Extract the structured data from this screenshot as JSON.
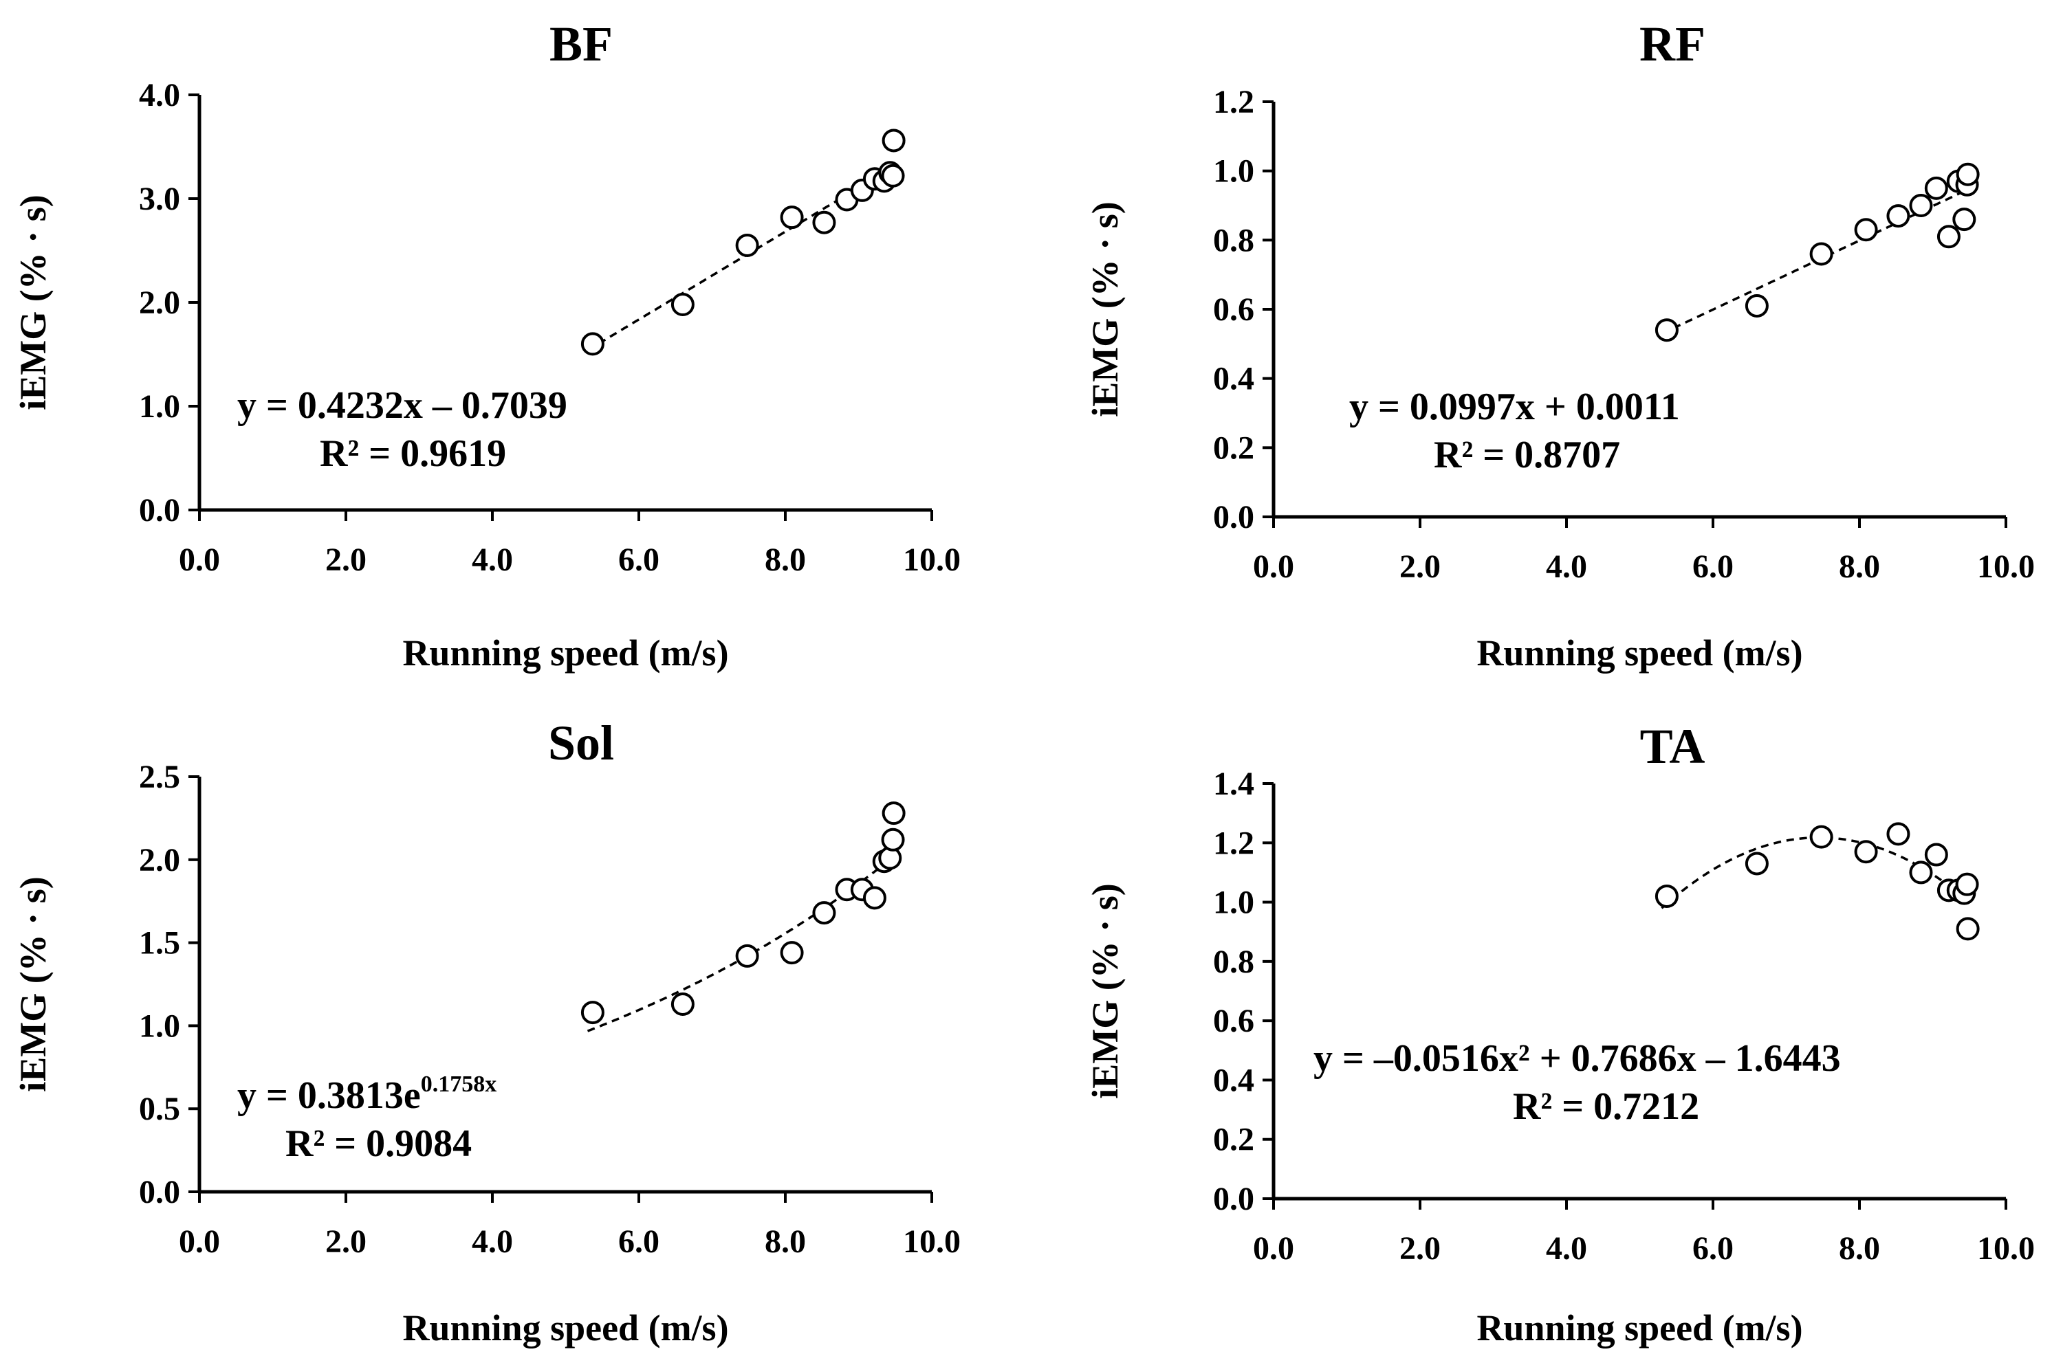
{
  "chart_data": [
    {
      "type": "scatter",
      "title": "BF",
      "xlabel": "Running speed (m/s)",
      "ylabel": "iEMG (% · s)",
      "xlim": [
        0,
        10
      ],
      "ylim": [
        0,
        4
      ],
      "xticks": [
        "0.0",
        "2.0",
        "4.0",
        "6.0",
        "8.0",
        "10.0"
      ],
      "yticks": [
        "0.0",
        "1.0",
        "2.0",
        "3.0",
        "4.0"
      ],
      "points": [
        [
          5.37,
          1.6
        ],
        [
          6.6,
          1.98
        ],
        [
          7.48,
          2.55
        ],
        [
          8.09,
          2.82
        ],
        [
          8.53,
          2.77
        ],
        [
          8.84,
          2.99
        ],
        [
          9.05,
          3.08
        ],
        [
          9.22,
          3.19
        ],
        [
          9.35,
          3.17
        ],
        [
          9.43,
          3.25
        ],
        [
          9.47,
          3.22
        ],
        [
          9.48,
          3.56
        ]
      ],
      "trend": {
        "kind": "linear",
        "a": 0.4232,
        "b": -0.7039,
        "x_range": [
          5.3,
          9.5
        ]
      },
      "equation": "y = 0.4232x – 0.7039",
      "r2_label": "R² = 0.9619"
    },
    {
      "type": "scatter",
      "title": "RF",
      "xlabel": "Running speed (m/s)",
      "ylabel": "iEMG (% · s)",
      "xlim": [
        0,
        10
      ],
      "ylim": [
        0,
        1.2
      ],
      "xticks": [
        "0.0",
        "2.0",
        "4.0",
        "6.0",
        "8.0",
        "10.0"
      ],
      "yticks": [
        "0.0",
        "0.2",
        "0.4",
        "0.6",
        "0.8",
        "1.0",
        "1.2"
      ],
      "points": [
        [
          5.37,
          0.54
        ],
        [
          6.6,
          0.61
        ],
        [
          7.48,
          0.76
        ],
        [
          8.09,
          0.83
        ],
        [
          8.53,
          0.87
        ],
        [
          8.84,
          0.9
        ],
        [
          9.05,
          0.95
        ],
        [
          9.22,
          0.81
        ],
        [
          9.35,
          0.97
        ],
        [
          9.43,
          0.86
        ],
        [
          9.47,
          0.96
        ],
        [
          9.48,
          0.99
        ]
      ],
      "trend": {
        "kind": "linear",
        "a": 0.0997,
        "b": 0.0011,
        "x_range": [
          5.3,
          9.5
        ]
      },
      "equation": "y = 0.0997x + 0.0011",
      "r2_label": "R² = 0.8707"
    },
    {
      "type": "scatter",
      "title": "Sol",
      "xlabel": "Running speed (m/s)",
      "ylabel": "iEMG (% · s)",
      "xlim": [
        0,
        10
      ],
      "ylim": [
        0,
        2.5
      ],
      "xticks": [
        "0.0",
        "2.0",
        "4.0",
        "6.0",
        "8.0",
        "10.0"
      ],
      "yticks": [
        "0.0",
        "0.5",
        "1.0",
        "1.5",
        "2.0",
        "2.5"
      ],
      "points": [
        [
          5.37,
          1.08
        ],
        [
          6.6,
          1.13
        ],
        [
          7.48,
          1.42
        ],
        [
          8.09,
          1.44
        ],
        [
          8.53,
          1.68
        ],
        [
          8.84,
          1.82
        ],
        [
          9.05,
          1.82
        ],
        [
          9.22,
          1.77
        ],
        [
          9.35,
          1.99
        ],
        [
          9.43,
          2.01
        ],
        [
          9.47,
          2.12
        ],
        [
          9.48,
          2.28
        ]
      ],
      "trend": {
        "kind": "exponential",
        "a": 0.3813,
        "k": 0.1758,
        "x_range": [
          5.3,
          9.5
        ]
      },
      "equation_prefix": "y = 0.3813e",
      "equation_exponent": "0.1758x",
      "r2_label": "R² = 0.9084"
    },
    {
      "type": "scatter",
      "title": "TA",
      "xlabel": "Running speed (m/s)",
      "ylabel": "iEMG (% · s)",
      "xlim": [
        0,
        10
      ],
      "ylim": [
        0,
        1.4
      ],
      "xticks": [
        "0.0",
        "2.0",
        "4.0",
        "6.0",
        "8.0",
        "10.0"
      ],
      "yticks": [
        "0.0",
        "0.2",
        "0.4",
        "0.6",
        "0.8",
        "1.0",
        "1.2",
        "1.4"
      ],
      "points": [
        [
          5.37,
          1.02
        ],
        [
          6.6,
          1.13
        ],
        [
          7.48,
          1.22
        ],
        [
          8.09,
          1.17
        ],
        [
          8.53,
          1.23
        ],
        [
          8.84,
          1.1
        ],
        [
          9.05,
          1.16
        ],
        [
          9.22,
          1.04
        ],
        [
          9.35,
          1.04
        ],
        [
          9.43,
          1.03
        ],
        [
          9.47,
          1.06
        ],
        [
          9.48,
          0.91
        ]
      ],
      "trend": {
        "kind": "quadratic",
        "a": -0.0516,
        "b": 0.7686,
        "c": -1.6443,
        "x_range": [
          5.3,
          9.5
        ]
      },
      "equation": "y = –0.0516x² + 0.7686x – 1.6443",
      "r2_label": "R² = 0.7212"
    }
  ]
}
